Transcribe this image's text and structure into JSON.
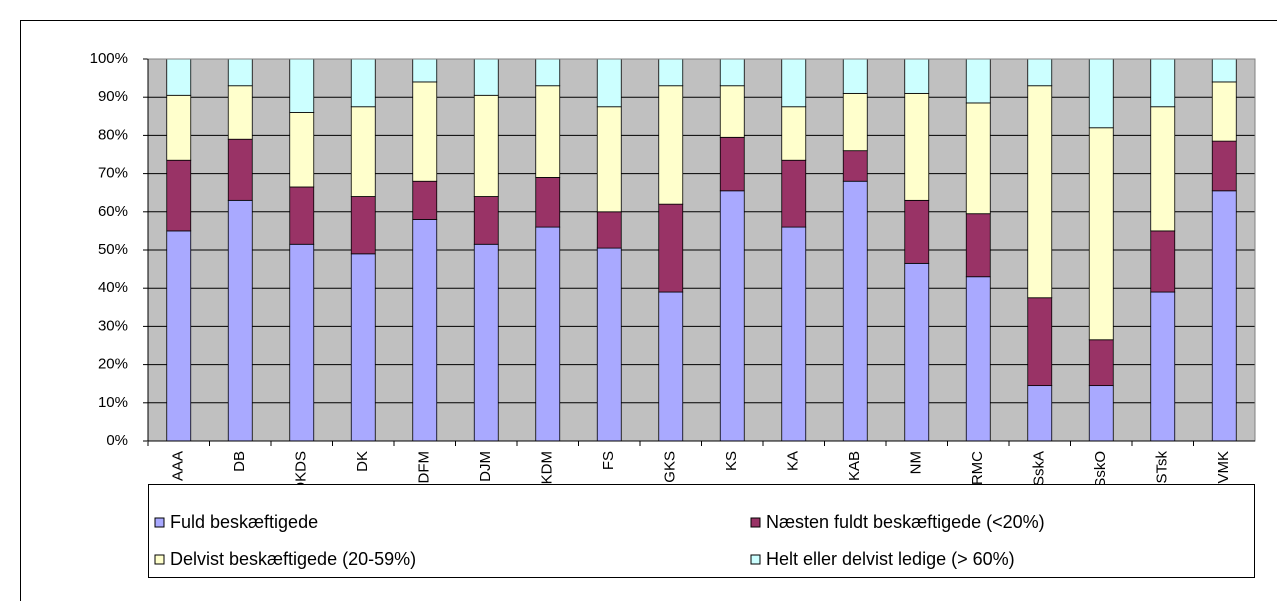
{
  "chart_data": {
    "type": "stacked_bar_percent",
    "categories": [
      "AAA",
      "DB",
      "DKDS",
      "DK",
      "DFM",
      "DJM",
      "DKDM",
      "FS",
      "GKS",
      "KS",
      "KA",
      "KAB",
      "NM",
      "RMC",
      "SskA",
      "SskO",
      "STsk",
      "VMK"
    ],
    "series": [
      {
        "name": "Fuld beskæftigede",
        "color": "#a9a9ff",
        "values": [
          55,
          63,
          51.5,
          49,
          58,
          51.5,
          56,
          50.5,
          39,
          65.5,
          56,
          68,
          46.5,
          43,
          14.5,
          14.5,
          39,
          65.5
        ]
      },
      {
        "name": "Næsten fuldt beskæftigede (<20%)",
        "color": "#993366",
        "values": [
          18.5,
          16,
          15,
          15,
          10,
          12.5,
          13,
          9.5,
          23,
          14,
          17.5,
          8,
          16.5,
          16.5,
          23,
          12,
          16,
          13
        ]
      },
      {
        "name": "Delvist beskæftigede (20-59%)",
        "color": "#ffffcc",
        "values": [
          17,
          14,
          19.5,
          23.5,
          26,
          26.5,
          24,
          27.5,
          31,
          13.5,
          14,
          15,
          28,
          29,
          55.5,
          55.5,
          32.5,
          15.5
        ]
      },
      {
        "name": "Helt eller delvist ledige (> 60%)",
        "color": "#ccffff",
        "values": [
          9.5,
          7,
          14,
          12.5,
          6,
          9.5,
          7,
          12.5,
          7,
          7,
          12.5,
          9,
          9,
          11.5,
          7,
          18,
          12.5,
          6
        ]
      }
    ],
    "ylim": [
      0,
      100
    ],
    "yticks": [
      {
        "value": 0,
        "label": "0%"
      },
      {
        "value": 10,
        "label": "10%"
      },
      {
        "value": 20,
        "label": "20%"
      },
      {
        "value": 30,
        "label": "30%"
      },
      {
        "value": 40,
        "label": "40%"
      },
      {
        "value": 50,
        "label": "50%"
      },
      {
        "value": 60,
        "label": "60%"
      },
      {
        "value": 70,
        "label": "70%"
      },
      {
        "value": 80,
        "label": "80%"
      },
      {
        "value": 90,
        "label": "90%"
      },
      {
        "value": 100,
        "label": "100%"
      }
    ],
    "grid": true,
    "legend": "bottom",
    "plot_background": "#c0c0c0"
  }
}
